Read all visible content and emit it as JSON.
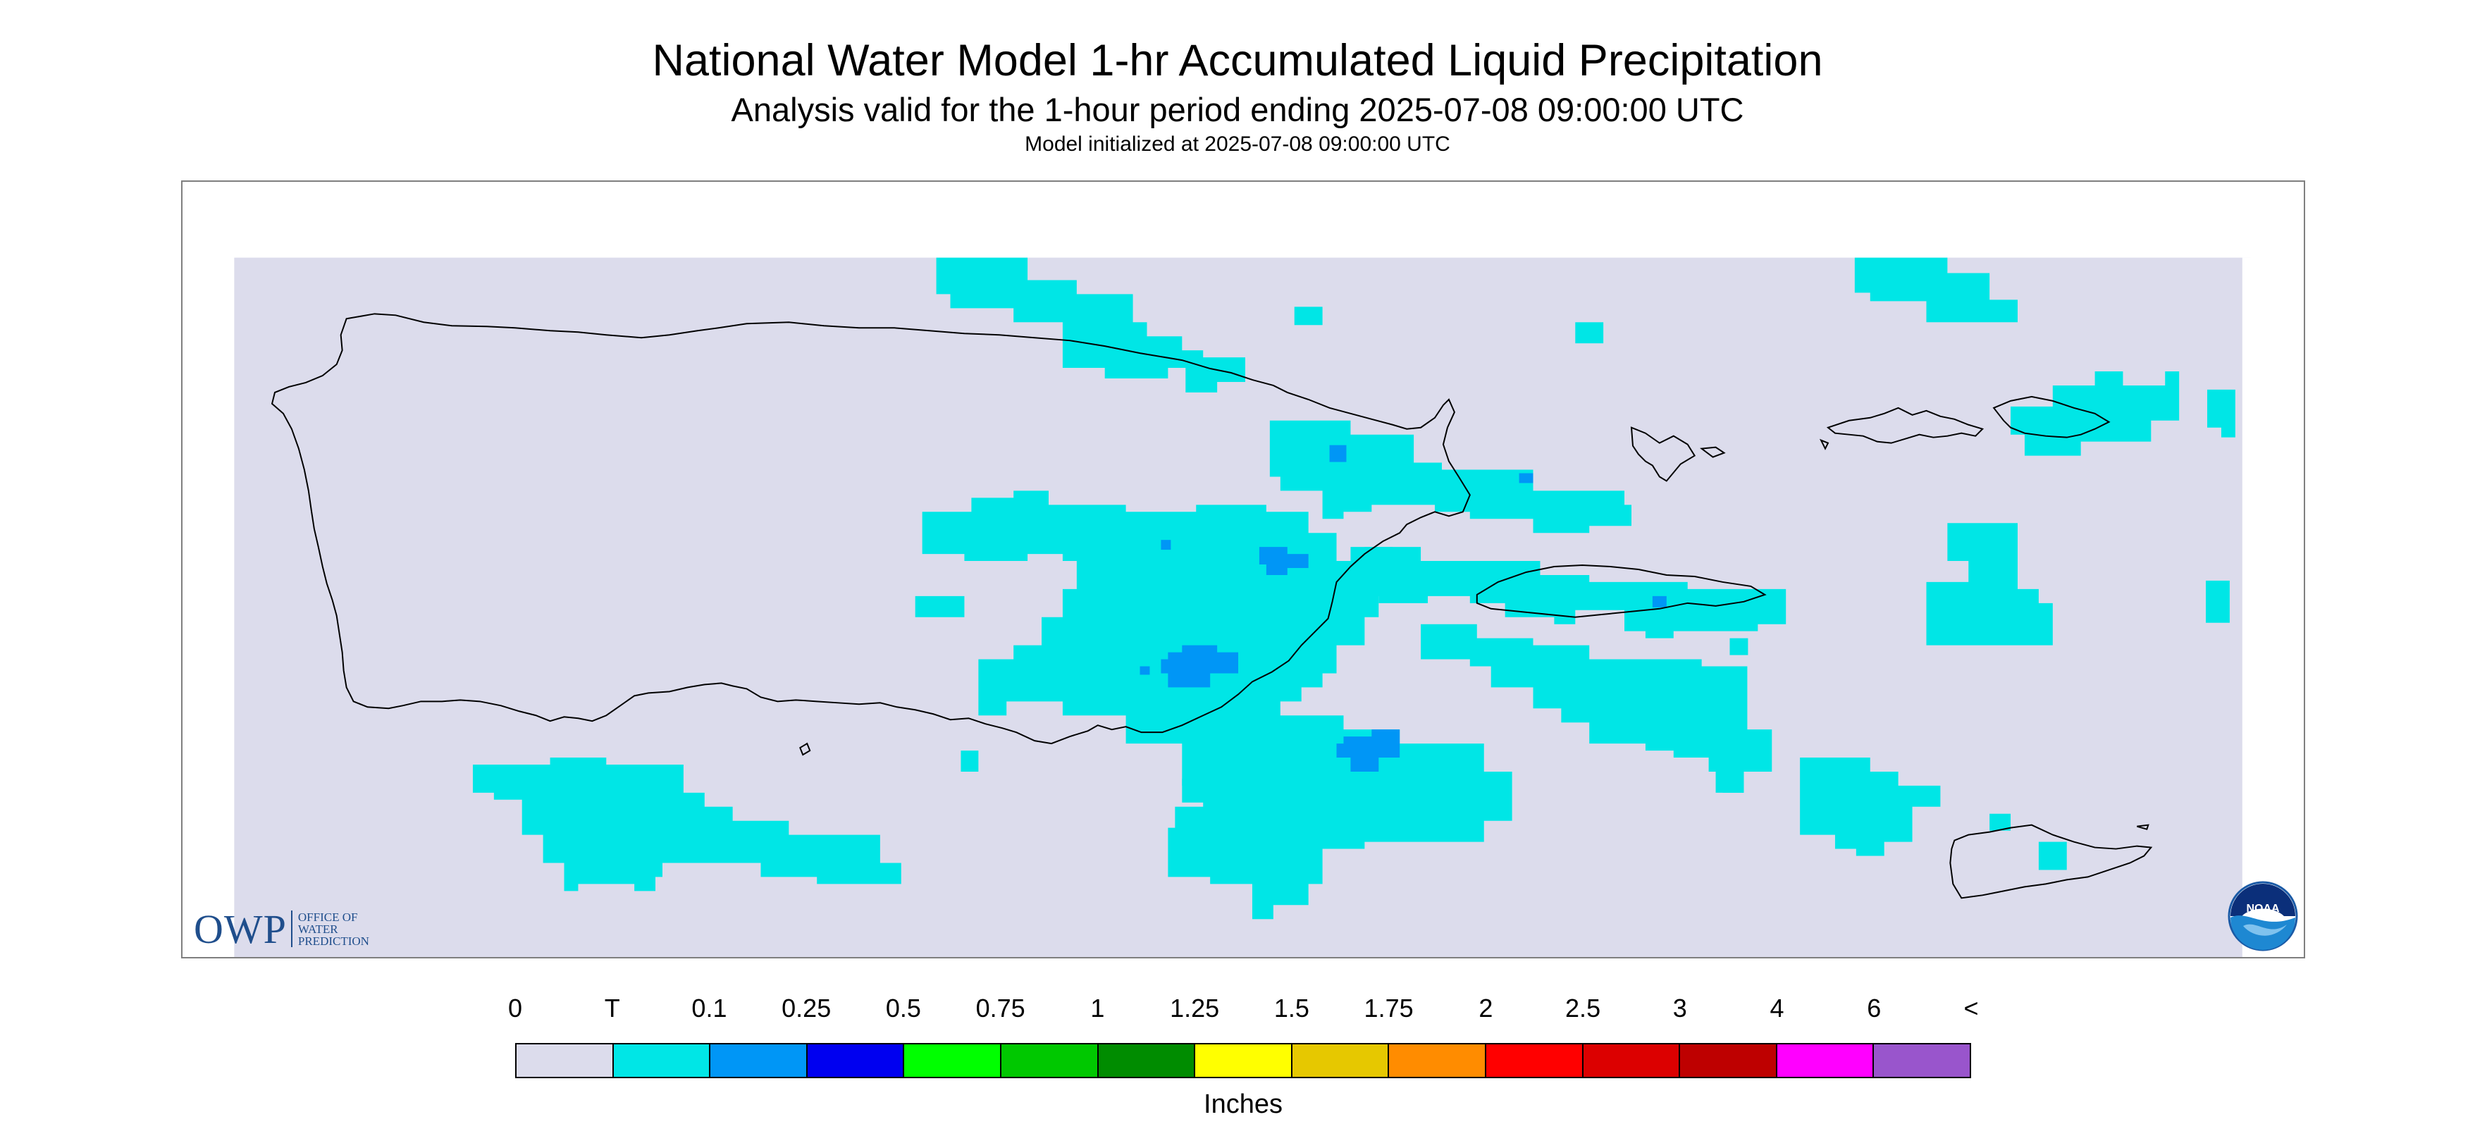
{
  "header": {
    "title": "National Water Model 1-hr Accumulated Liquid Precipitation",
    "subtitle": "Analysis valid for the 1-hour period ending 2025-07-08 09:00:00 UTC",
    "init": "Model initialized at 2025-07-08 09:00:00 UTC"
  },
  "map": {
    "region_fill": "#dcdcec",
    "coastline_color": "#000000",
    "precip_colors": {
      "trace": "#00e6e6",
      "tenth": "#0096f6"
    }
  },
  "logos": {
    "owp_mark": "OWP",
    "owp_line1": "OFFICE OF",
    "owp_line2": "WATER",
    "owp_line3": "PREDICTION",
    "noaa": "NOAA"
  },
  "legend": {
    "units": "Inches",
    "ticks": [
      "0",
      "T",
      "0.1",
      "0.25",
      "0.5",
      "0.75",
      "1",
      "1.25",
      "1.5",
      "1.75",
      "2",
      "2.5",
      "3",
      "4",
      "6",
      "<"
    ],
    "colors": [
      "#dcdcec",
      "#00e6e6",
      "#0096f6",
      "#0000f0",
      "#00ff00",
      "#00c800",
      "#008c00",
      "#ffff00",
      "#e6c800",
      "#ff8c00",
      "#ff0000",
      "#dc0000",
      "#be0000",
      "#ff00ff",
      "#9955cc"
    ]
  }
}
